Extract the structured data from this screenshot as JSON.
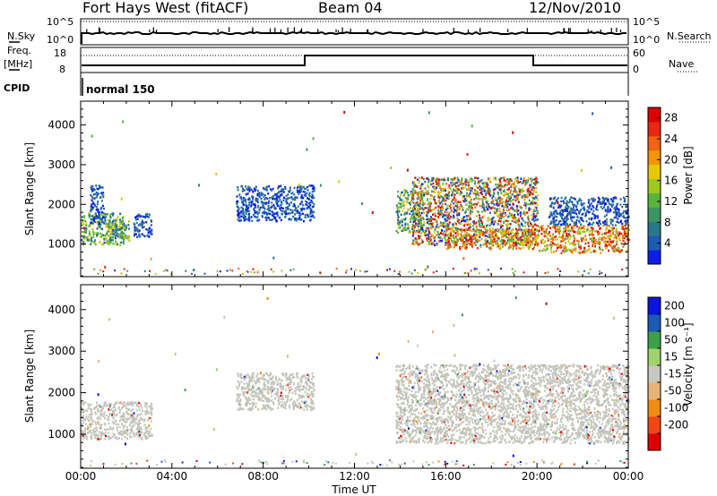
{
  "header": {
    "station": "Fort Hays West (fitACF)",
    "beam": "Beam 04",
    "date": "12/Nov/2010"
  },
  "strips": {
    "nsky_label": "N.Sky",
    "nsky_ticks": [
      "10^5",
      "10^0"
    ],
    "nsearch_label": "N.Search",
    "nsearch_ticks": [
      "10^5",
      "10^0"
    ],
    "freq_label_line1": "Freq.",
    "freq_label_line2": "[MHz]",
    "freq_ticks": [
      "18",
      "8"
    ],
    "nave_label": "Nave",
    "nave_ticks": [
      "60",
      "0"
    ],
    "cpid_label": "CPID",
    "cpid_value": "normal 150"
  },
  "colors": {
    "power_scale": [
      "#0a1ee6",
      "#1e5ab4",
      "#28788c",
      "#3c9664",
      "#5ab43c",
      "#a0c81e",
      "#e6c800",
      "#f0960a",
      "#f06414",
      "#e62814",
      "#dc0000"
    ],
    "velocity_scale": [
      "#dc0000",
      "#f04614",
      "#f08c14",
      "#e6b478",
      "#c8c8c0",
      "#a0d26e",
      "#3ca04a",
      "#1e5ab4",
      "#0a14dc"
    ],
    "ground_scatter": "#c4c4bc"
  },
  "chart_data": [
    {
      "type": "heatmap",
      "name": "Power",
      "xlabel": "",
      "ylabel": "Slant Range [km]",
      "x_ticks": [
        "00:00",
        "04:00",
        "08:00",
        "12:00",
        "16:00",
        "20:00",
        "00:00"
      ],
      "y_ticks": [
        "1000",
        "2000",
        "3000",
        "4000"
      ],
      "ylim": [
        180,
        4600
      ],
      "colorbar_label": "Power [dB]",
      "colorbar_ticks": [
        "4",
        "8",
        "12",
        "16",
        "20",
        "24",
        "28"
      ],
      "scatter_regions": [
        {
          "t": [
            0.0,
            1.9
          ],
          "range": [
            1000,
            1800
          ],
          "level": "mid"
        },
        {
          "t": [
            0.4,
            1.0
          ],
          "range": [
            1500,
            2500
          ],
          "level": "low"
        },
        {
          "t": [
            1.0,
            2.1
          ],
          "range": [
            1100,
            1600
          ],
          "level": "mid"
        },
        {
          "t": [
            2.3,
            3.1
          ],
          "range": [
            1200,
            1800
          ],
          "level": "low"
        },
        {
          "t": [
            6.8,
            10.2
          ],
          "range": [
            1600,
            2500
          ],
          "level": "low"
        },
        {
          "t": [
            13.8,
            15.0
          ],
          "range": [
            1300,
            2400
          ],
          "level": "mid"
        },
        {
          "t": [
            14.5,
            20.0
          ],
          "range": [
            1000,
            2700
          ],
          "level": "mixed"
        },
        {
          "t": [
            16.0,
            20.0
          ],
          "range": [
            900,
            1400
          ],
          "level": "high"
        },
        {
          "t": [
            20.0,
            24.0
          ],
          "range": [
            800,
            1500
          ],
          "level": "high"
        },
        {
          "t": [
            20.5,
            24.0
          ],
          "range": [
            1500,
            2200
          ],
          "level": "low"
        }
      ]
    },
    {
      "type": "heatmap",
      "name": "Velocity",
      "xlabel": "Time UT",
      "ylabel": "Slant Range [km]",
      "x_ticks": [
        "00:00",
        "04:00",
        "08:00",
        "12:00",
        "16:00",
        "20:00",
        "00:00"
      ],
      "y_ticks": [
        "1000",
        "2000",
        "3000",
        "4000"
      ],
      "ylim": [
        180,
        4600
      ],
      "colorbar_label": "Velocity [m s⁻¹]",
      "colorbar_ticks": [
        "200",
        "100",
        "50",
        "15",
        "-15",
        "-50",
        "-100",
        "-200"
      ],
      "scatter_regions": [
        {
          "t": [
            0.0,
            3.1
          ],
          "range": [
            900,
            1800
          ],
          "level": "ground"
        },
        {
          "t": [
            6.8,
            10.2
          ],
          "range": [
            1600,
            2500
          ],
          "level": "ground"
        },
        {
          "t": [
            13.8,
            24.0
          ],
          "range": [
            800,
            2700
          ],
          "level": "ground"
        }
      ]
    }
  ]
}
